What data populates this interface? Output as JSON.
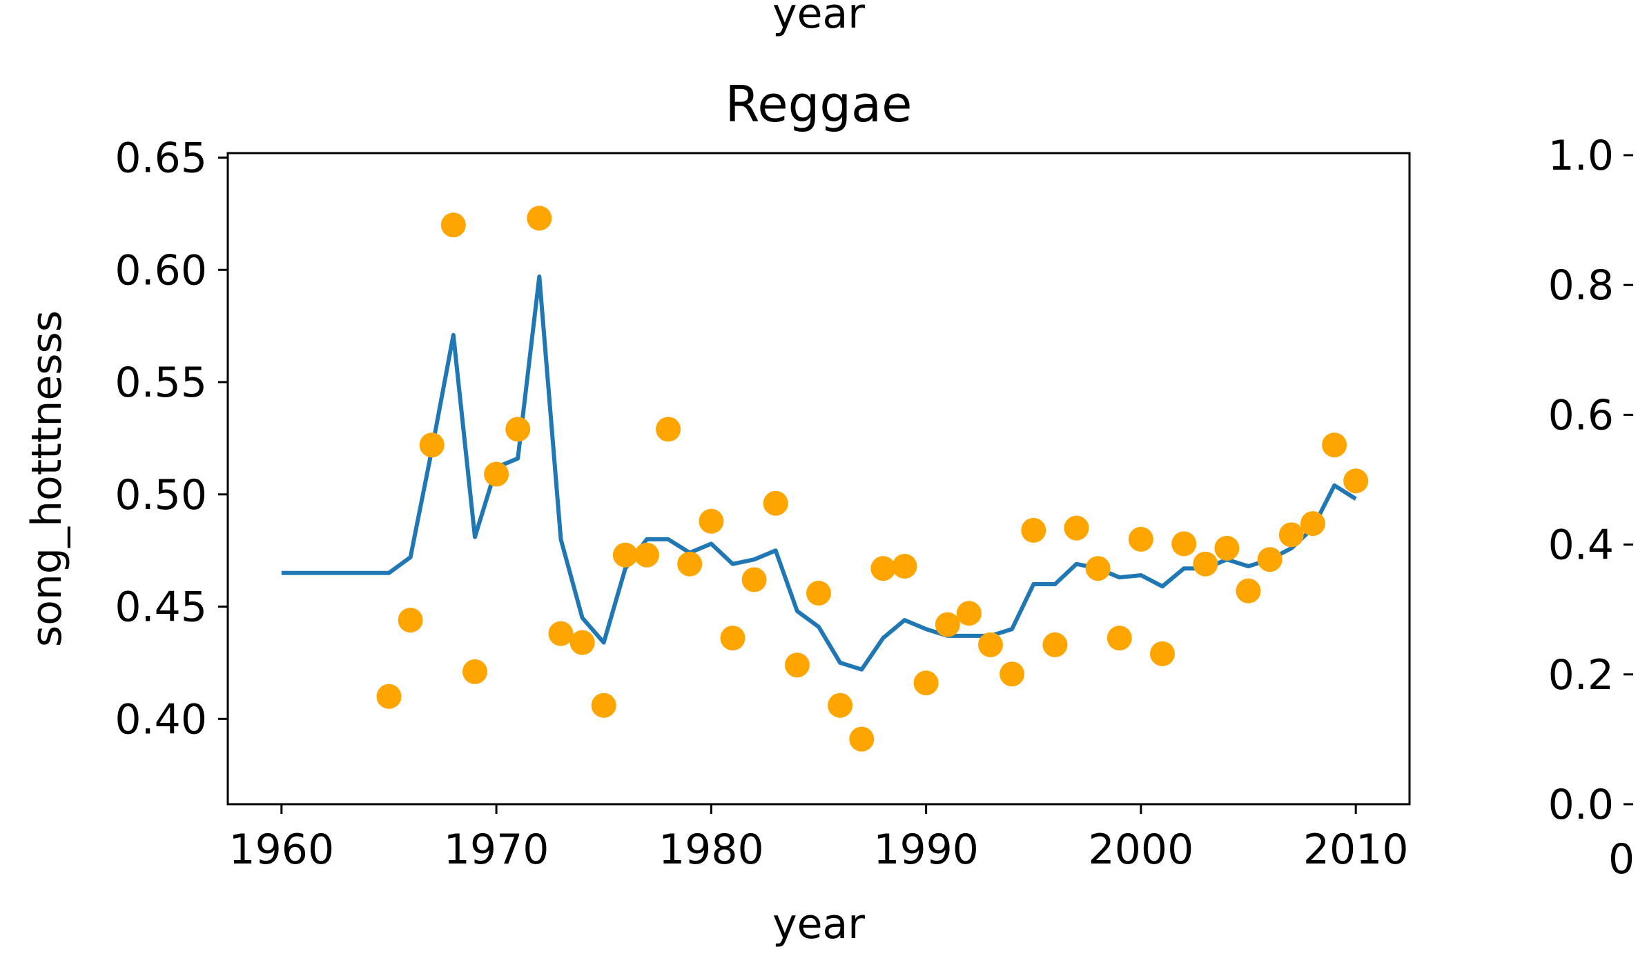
{
  "chart_data": [
    {
      "type": "line+scatter",
      "title": "Reggae",
      "xlabel": "year",
      "ylabel": "song_hotttnesss",
      "top_clipped_label": "year",
      "xlim": [
        1957.5,
        2012.5
      ],
      "ylim": [
        0.362,
        0.652
      ],
      "xticks": [
        1960,
        1970,
        1980,
        1990,
        2000,
        2010
      ],
      "xtick_labels": [
        "1960",
        "1970",
        "1980",
        "1990",
        "2000",
        "2010"
      ],
      "yticks": [
        0.4,
        0.45,
        0.5,
        0.55,
        0.6,
        0.65
      ],
      "ytick_labels": [
        "0.40",
        "0.45",
        "0.50",
        "0.55",
        "0.60",
        "0.65"
      ],
      "grid": false,
      "series": [
        {
          "kind": "scatter",
          "color": "#FFA500",
          "points": [
            [
              1965,
              0.41
            ],
            [
              1966,
              0.444
            ],
            [
              1967,
              0.522
            ],
            [
              1968,
              0.62
            ],
            [
              1969,
              0.421
            ],
            [
              1970,
              0.509
            ],
            [
              1971,
              0.529
            ],
            [
              1972,
              0.623
            ],
            [
              1973,
              0.438
            ],
            [
              1974,
              0.434
            ],
            [
              1975,
              0.406
            ],
            [
              1976,
              0.473
            ],
            [
              1977,
              0.473
            ],
            [
              1978,
              0.529
            ],
            [
              1979,
              0.469
            ],
            [
              1980,
              0.488
            ],
            [
              1981,
              0.436
            ],
            [
              1982,
              0.462
            ],
            [
              1983,
              0.496
            ],
            [
              1984,
              0.424
            ],
            [
              1985,
              0.456
            ],
            [
              1986,
              0.406
            ],
            [
              1987,
              0.391
            ],
            [
              1988,
              0.467
            ],
            [
              1989,
              0.468
            ],
            [
              1990,
              0.416
            ],
            [
              1991,
              0.442
            ],
            [
              1992,
              0.447
            ],
            [
              1993,
              0.433
            ],
            [
              1994,
              0.42
            ],
            [
              1995,
              0.484
            ],
            [
              1996,
              0.433
            ],
            [
              1997,
              0.485
            ],
            [
              1998,
              0.467
            ],
            [
              1999,
              0.436
            ],
            [
              2000,
              0.48
            ],
            [
              2001,
              0.429
            ],
            [
              2002,
              0.478
            ],
            [
              2003,
              0.469
            ],
            [
              2004,
              0.476
            ],
            [
              2005,
              0.457
            ],
            [
              2006,
              0.471
            ],
            [
              2007,
              0.482
            ],
            [
              2008,
              0.487
            ],
            [
              2009,
              0.522
            ],
            [
              2010,
              0.506
            ]
          ]
        },
        {
          "kind": "line",
          "color": "#1F77B4",
          "points": [
            [
              1960,
              0.465
            ],
            [
              1961,
              0.465
            ],
            [
              1962,
              0.465
            ],
            [
              1963,
              0.465
            ],
            [
              1964,
              0.465
            ],
            [
              1965,
              0.465
            ],
            [
              1966,
              0.472
            ],
            [
              1967,
              0.52
            ],
            [
              1968,
              0.571
            ],
            [
              1969,
              0.481
            ],
            [
              1970,
              0.512
            ],
            [
              1971,
              0.516
            ],
            [
              1972,
              0.597
            ],
            [
              1973,
              0.48
            ],
            [
              1974,
              0.445
            ],
            [
              1975,
              0.434
            ],
            [
              1976,
              0.467
            ],
            [
              1977,
              0.48
            ],
            [
              1978,
              0.48
            ],
            [
              1979,
              0.474
            ],
            [
              1980,
              0.478
            ],
            [
              1981,
              0.469
            ],
            [
              1982,
              0.471
            ],
            [
              1983,
              0.475
            ],
            [
              1984,
              0.448
            ],
            [
              1985,
              0.441
            ],
            [
              1986,
              0.425
            ],
            [
              1987,
              0.422
            ],
            [
              1988,
              0.436
            ],
            [
              1989,
              0.444
            ],
            [
              1990,
              0.44
            ],
            [
              1991,
              0.437
            ],
            [
              1992,
              0.437
            ],
            [
              1993,
              0.437
            ],
            [
              1994,
              0.44
            ],
            [
              1995,
              0.46
            ],
            [
              1996,
              0.46
            ],
            [
              1997,
              0.469
            ],
            [
              1998,
              0.467
            ],
            [
              1999,
              0.463
            ],
            [
              2000,
              0.464
            ],
            [
              2001,
              0.459
            ],
            [
              2002,
              0.467
            ],
            [
              2003,
              0.467
            ],
            [
              2004,
              0.471
            ],
            [
              2005,
              0.468
            ],
            [
              2006,
              0.471
            ],
            [
              2007,
              0.476
            ],
            [
              2008,
              0.485
            ],
            [
              2009,
              0.504
            ],
            [
              2010,
              0.498
            ]
          ]
        }
      ]
    },
    {
      "type": "empty",
      "title": "",
      "ylim": [
        0.0,
        1.0
      ],
      "yticks": [
        0.0,
        0.2,
        0.4,
        0.6,
        0.8,
        1.0
      ],
      "ytick_labels": [
        "0.0",
        "0.2",
        "0.4",
        "0.6",
        "0.8",
        "1.0"
      ],
      "xtick_labels": [
        "0"
      ]
    }
  ]
}
